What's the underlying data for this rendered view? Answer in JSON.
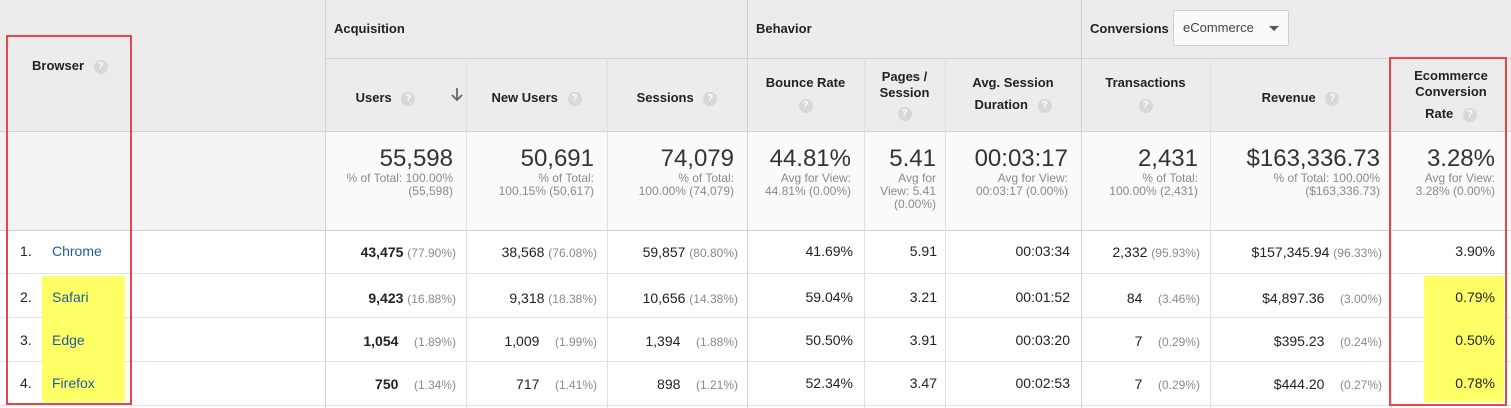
{
  "header": {
    "browser_label": "Browser",
    "acquisition": "Acquisition",
    "behavior": "Behavior",
    "conversions": "Conversions",
    "conversions_select": "eCommerce",
    "help_glyph": "?"
  },
  "columns": {
    "users": "Users",
    "new_users": "New Users",
    "sessions": "Sessions",
    "bounce_rate": [
      "Bounce Rate"
    ],
    "pages_session": [
      "Pages /",
      "Session"
    ],
    "avg_session": [
      "Avg. Session",
      "Duration"
    ],
    "transactions": "Transactions",
    "revenue": "Revenue",
    "conv_rate": [
      "Ecommerce",
      "Conversion",
      "Rate"
    ]
  },
  "summary": {
    "users": {
      "value": "55,598",
      "sub1": "% of Total: 100.00%",
      "sub2": "(55,598)"
    },
    "new_users": {
      "value": "50,691",
      "sub1": "% of Total:",
      "sub2": "100.15% (50,617)"
    },
    "sessions": {
      "value": "74,079",
      "sub1": "% of Total:",
      "sub2": "100.00% (74,079)"
    },
    "bounce_rate": {
      "value": "44.81%",
      "sub1": "Avg for View:",
      "sub2": "44.81% (0.00%)"
    },
    "pages_session": {
      "value": "5.41",
      "sub1": "Avg for",
      "sub2": "View: 5.41",
      "sub3": "(0.00%)"
    },
    "avg_session": {
      "value": "00:03:17",
      "sub1": "Avg for View:",
      "sub2": "00:03:17 (0.00%)"
    },
    "transactions": {
      "value": "2,431",
      "sub1": "% of Total:",
      "sub2": "100.00% (2,431)"
    },
    "revenue": {
      "value": "$163,336.73",
      "sub1": "% of Total: 100.00%",
      "sub2": "($163,336.73)"
    },
    "conv_rate": {
      "value": "3.28%",
      "sub1": "Avg for View:",
      "sub2": "3.28% (0.00%)"
    }
  },
  "rows": [
    {
      "num": "1.",
      "browser": "Chrome",
      "users": "43,475",
      "users_pct": "(77.90%)",
      "new_users": "38,568",
      "new_users_pct": "(76.08%)",
      "sessions": "59,857",
      "sessions_pct": "(80.80%)",
      "bounce": "41.69%",
      "pages": "5.91",
      "duration": "00:03:34",
      "trans": "2,332",
      "trans_pct": "(95.93%)",
      "revenue": "$157,345.94",
      "revenue_pct": "(96.33%)",
      "conv": "3.90%"
    },
    {
      "num": "2.",
      "browser": "Safari",
      "users": "9,423",
      "users_pct": "(16.88%)",
      "new_users": "9,318",
      "new_users_pct": "(18.38%)",
      "sessions": "10,656",
      "sessions_pct": "(14.38%)",
      "bounce": "59.04%",
      "pages": "3.21",
      "duration": "00:01:52",
      "trans": "84",
      "trans_pct": "(3.46%)",
      "revenue": "$4,897.36",
      "revenue_pct": "(3.00%)",
      "conv": "0.79%"
    },
    {
      "num": "3.",
      "browser": "Edge",
      "users": "1,054",
      "users_pct": "(1.89%)",
      "new_users": "1,009",
      "new_users_pct": "(1.99%)",
      "sessions": "1,394",
      "sessions_pct": "(1.88%)",
      "bounce": "50.50%",
      "pages": "3.91",
      "duration": "00:03:20",
      "trans": "7",
      "trans_pct": "(0.29%)",
      "revenue": "$395.23",
      "revenue_pct": "(0.24%)",
      "conv": "0.50%"
    },
    {
      "num": "4.",
      "browser": "Firefox",
      "users": "750",
      "users_pct": "(1.34%)",
      "new_users": "717",
      "new_users_pct": "(1.41%)",
      "sessions": "898",
      "sessions_pct": "(1.21%)",
      "bounce": "52.34%",
      "pages": "3.47",
      "duration": "00:02:53",
      "trans": "7",
      "trans_pct": "(0.29%)",
      "revenue": "$444.20",
      "revenue_pct": "(0.27%)",
      "conv": "0.78%"
    }
  ],
  "colors": {
    "highlight": "#ffff66",
    "annotation_box": "#e8474a",
    "link": "#1a5f99"
  },
  "icons": {
    "sort": "arrow-down-icon",
    "help": "question-mark-icon",
    "dropdown": "caret-down-icon"
  }
}
